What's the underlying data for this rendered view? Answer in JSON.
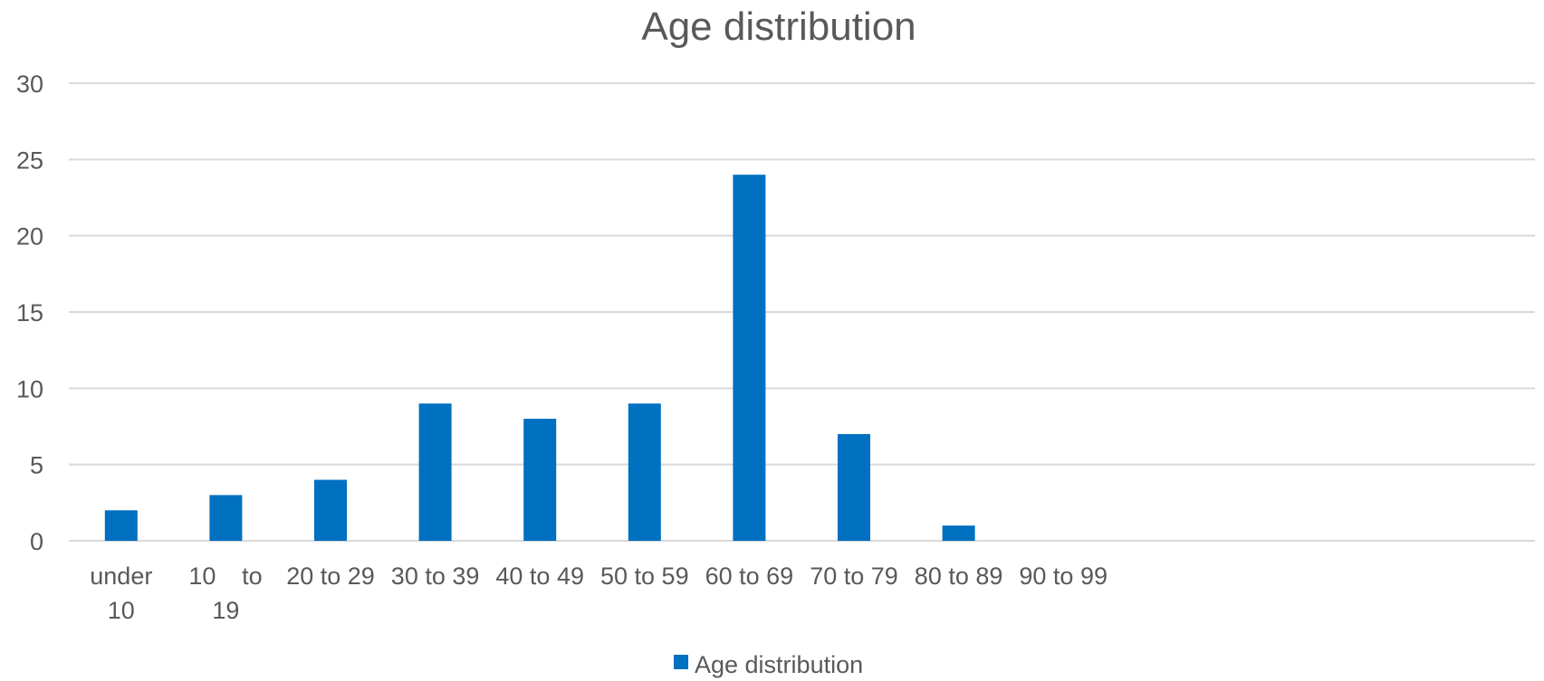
{
  "chart_data": {
    "type": "bar",
    "title": "Age distribution",
    "categories": [
      "under 10",
      "10 to 19",
      "20 to 29",
      "30 to 39",
      "40 to 49",
      "50 to 59",
      "60 to 69",
      "70 to 79",
      "80 to 89",
      "90 to 99"
    ],
    "category_label_lines": [
      [
        "under",
        "10"
      ],
      [
        "10",
        "to",
        "19"
      ],
      [
        "20 to 29"
      ],
      [
        "30 to 39"
      ],
      [
        "40 to 49"
      ],
      [
        "50 to 59"
      ],
      [
        "60 to 69"
      ],
      [
        "70 to 79"
      ],
      [
        "80 to 89"
      ],
      [
        "90 to 99"
      ]
    ],
    "series": [
      {
        "name": "Age distribution",
        "values": [
          2,
          3,
          4,
          9,
          8,
          9,
          24,
          7,
          1,
          0
        ],
        "color": "#0070c0"
      }
    ],
    "xlabel": "",
    "ylabel": "",
    "ylim": [
      0,
      30
    ],
    "yticks": [
      0,
      5,
      10,
      15,
      20,
      25,
      30
    ],
    "grid": true,
    "legend_position": "bottom"
  }
}
